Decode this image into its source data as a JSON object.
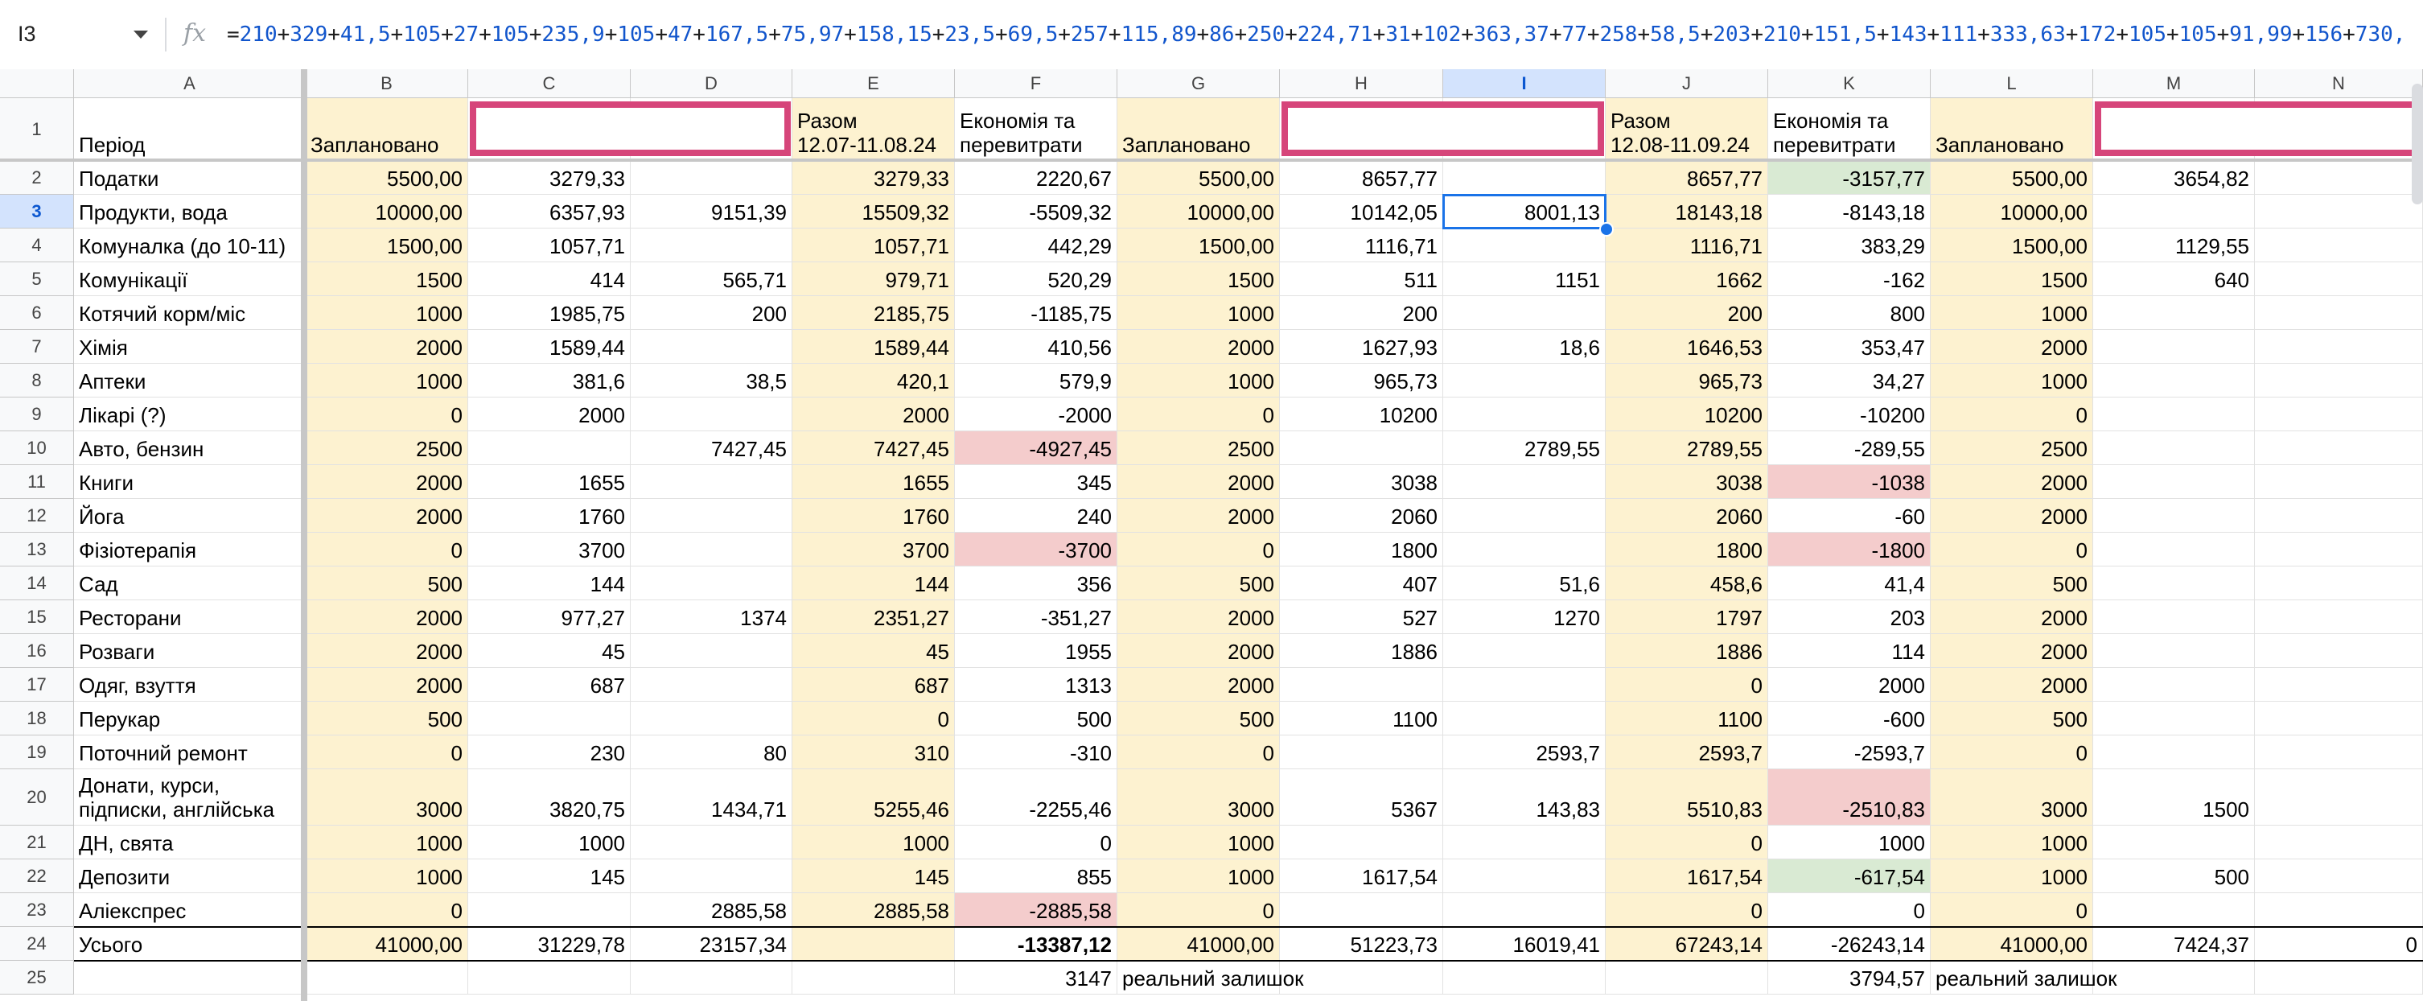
{
  "formula_bar": {
    "name_box": "I3",
    "formula": "=210+329+41,5+105+27+105+235,9+105+47+167,5+75,97+158,15+23,5+69,5+257+115,89+86+250+224,71+31+102+363,37+77+258+58,5+203+210+151,5+143+111+333,63+172+105+105+91,99+156+730,"
  },
  "columns": [
    "A",
    "B",
    "C",
    "D",
    "E",
    "F",
    "G",
    "H",
    "I",
    "J",
    "K",
    "L",
    "M",
    "N"
  ],
  "selected": {
    "row": 3,
    "col": "I"
  },
  "colors": {
    "planned_bg": "#fdf2d0",
    "red_bg": "#f4cccc",
    "green_bg": "#d9ead3",
    "selection": "#1a73e8",
    "blank_header_border": "#d6457a",
    "formula_number": "#1155cc"
  },
  "header_row": {
    "A": "Період",
    "B": "Заплановано",
    "C": "",
    "E": "Разом\n12.07-11.08.24",
    "F": "Економія та\nперевитрати",
    "G": "Заплановано",
    "H": "",
    "J": "Разом\n12.08-11.09.24",
    "K": "Економія та\nперевитрати",
    "L": "Заплановано",
    "M": ""
  },
  "rows": [
    {
      "n": 2,
      "A": "Податки",
      "B": "5500,00",
      "C": "3279,33",
      "D": "",
      "E": "3279,33",
      "F": "2220,67",
      "G": "5500,00",
      "H": "8657,77",
      "I": "",
      "J": "8657,77",
      "K": "-3157,77",
      "L": "5500,00",
      "M": "3654,82",
      "N": ""
    },
    {
      "n": 3,
      "A": "Продукти, вода",
      "B": "10000,00",
      "C": "6357,93",
      "D": "9151,39",
      "E": "15509,32",
      "F": "-5509,32",
      "G": "10000,00",
      "H": "10142,05",
      "I": "8001,13",
      "J": "18143,18",
      "K": "-8143,18",
      "L": "10000,00",
      "M": "",
      "N": ""
    },
    {
      "n": 4,
      "A": "Комуналка (до 10-11)",
      "B": "1500,00",
      "C": "1057,71",
      "D": "",
      "E": "1057,71",
      "F": "442,29",
      "G": "1500,00",
      "H": "1116,71",
      "I": "",
      "J": "1116,71",
      "K": "383,29",
      "L": "1500,00",
      "M": "1129,55",
      "N": ""
    },
    {
      "n": 5,
      "A": "Комунікації",
      "B": "1500",
      "C": "414",
      "D": "565,71",
      "E": "979,71",
      "F": "520,29",
      "G": "1500",
      "H": "511",
      "I": "1151",
      "J": "1662",
      "K": "-162",
      "L": "1500",
      "M": "640",
      "N": ""
    },
    {
      "n": 6,
      "A": "Котячий корм/міс",
      "B": "1000",
      "C": "1985,75",
      "D": "200",
      "E": "2185,75",
      "F": "-1185,75",
      "G": "1000",
      "H": "200",
      "I": "",
      "J": "200",
      "K": "800",
      "L": "1000",
      "M": "",
      "N": ""
    },
    {
      "n": 7,
      "A": "Хімія",
      "B": "2000",
      "C": "1589,44",
      "D": "",
      "E": "1589,44",
      "F": "410,56",
      "G": "2000",
      "H": "1627,93",
      "I": "18,6",
      "J": "1646,53",
      "K": "353,47",
      "L": "2000",
      "M": "",
      "N": ""
    },
    {
      "n": 8,
      "A": "Аптеки",
      "B": "1000",
      "C": "381,6",
      "D": "38,5",
      "E": "420,1",
      "F": "579,9",
      "G": "1000",
      "H": "965,73",
      "I": "",
      "J": "965,73",
      "K": "34,27",
      "L": "1000",
      "M": "",
      "N": ""
    },
    {
      "n": 9,
      "A": "Лікарі (?)",
      "B": "0",
      "C": "2000",
      "D": "",
      "E": "2000",
      "F": "-2000",
      "G": "0",
      "H": "10200",
      "I": "",
      "J": "10200",
      "K": "-10200",
      "L": "0",
      "M": "",
      "N": ""
    },
    {
      "n": 10,
      "A": "Авто, бензин",
      "B": "2500",
      "C": "",
      "D": "7427,45",
      "E": "7427,45",
      "F": "-4927,45",
      "G": "2500",
      "H": "",
      "I": "2789,55",
      "J": "2789,55",
      "K": "-289,55",
      "L": "2500",
      "M": "",
      "N": ""
    },
    {
      "n": 11,
      "A": "Книги",
      "B": "2000",
      "C": "1655",
      "D": "",
      "E": "1655",
      "F": "345",
      "G": "2000",
      "H": "3038",
      "I": "",
      "J": "3038",
      "K": "-1038",
      "L": "2000",
      "M": "",
      "N": ""
    },
    {
      "n": 12,
      "A": "Йога",
      "B": "2000",
      "C": "1760",
      "D": "",
      "E": "1760",
      "F": "240",
      "G": "2000",
      "H": "2060",
      "I": "",
      "J": "2060",
      "K": "-60",
      "L": "2000",
      "M": "",
      "N": ""
    },
    {
      "n": 13,
      "A": "Фізіотерапія",
      "B": "0",
      "C": "3700",
      "D": "",
      "E": "3700",
      "F": "-3700",
      "G": "0",
      "H": "1800",
      "I": "",
      "J": "1800",
      "K": "-1800",
      "L": "0",
      "M": "",
      "N": ""
    },
    {
      "n": 14,
      "A": "Сад",
      "B": "500",
      "C": "144",
      "D": "",
      "E": "144",
      "F": "356",
      "G": "500",
      "H": "407",
      "I": "51,6",
      "J": "458,6",
      "K": "41,4",
      "L": "500",
      "M": "",
      "N": ""
    },
    {
      "n": 15,
      "A": "Ресторани",
      "B": "2000",
      "C": "977,27",
      "D": "1374",
      "E": "2351,27",
      "F": "-351,27",
      "G": "2000",
      "H": "527",
      "I": "1270",
      "J": "1797",
      "K": "203",
      "L": "2000",
      "M": "",
      "N": ""
    },
    {
      "n": 16,
      "A": "Розваги",
      "B": "2000",
      "C": "45",
      "D": "",
      "E": "45",
      "F": "1955",
      "G": "2000",
      "H": "1886",
      "I": "",
      "J": "1886",
      "K": "114",
      "L": "2000",
      "M": "",
      "N": ""
    },
    {
      "n": 17,
      "A": "Одяг, взуття",
      "B": "2000",
      "C": "687",
      "D": "",
      "E": "687",
      "F": "1313",
      "G": "2000",
      "H": "",
      "I": "",
      "J": "0",
      "K": "2000",
      "L": "2000",
      "M": "",
      "N": ""
    },
    {
      "n": 18,
      "A": "Перукар",
      "B": "500",
      "C": "",
      "D": "",
      "E": "0",
      "F": "500",
      "G": "500",
      "H": "1100",
      "I": "",
      "J": "1100",
      "K": "-600",
      "L": "500",
      "M": "",
      "N": ""
    },
    {
      "n": 19,
      "A": "Поточний ремонт",
      "B": "0",
      "C": "230",
      "D": "80",
      "E": "310",
      "F": "-310",
      "G": "0",
      "H": "",
      "I": "2593,7",
      "J": "2593,7",
      "K": "-2593,7",
      "L": "0",
      "M": "",
      "N": ""
    },
    {
      "n": 20,
      "A": "Донати, курси,\nпідписки, англійська",
      "B": "3000",
      "C": "3820,75",
      "D": "1434,71",
      "E": "5255,46",
      "F": "-2255,46",
      "G": "3000",
      "H": "5367",
      "I": "143,83",
      "J": "5510,83",
      "K": "-2510,83",
      "L": "3000",
      "M": "1500",
      "N": ""
    },
    {
      "n": 21,
      "A": "ДН, свята",
      "B": "1000",
      "C": "1000",
      "D": "",
      "E": "1000",
      "F": "0",
      "G": "1000",
      "H": "",
      "I": "",
      "J": "0",
      "K": "1000",
      "L": "1000",
      "M": "",
      "N": ""
    },
    {
      "n": 22,
      "A": "Депозити",
      "B": "1000",
      "C": "145",
      "D": "",
      "E": "145",
      "F": "855",
      "G": "1000",
      "H": "1617,54",
      "I": "",
      "J": "1617,54",
      "K": "-617,54",
      "L": "1000",
      "M": "500",
      "N": ""
    },
    {
      "n": 23,
      "A": "Аліекспрес",
      "B": "0",
      "C": "",
      "D": "2885,58",
      "E": "2885,58",
      "F": "-2885,58",
      "G": "0",
      "H": "",
      "I": "",
      "J": "0",
      "K": "0",
      "L": "0",
      "M": "",
      "N": ""
    },
    {
      "n": 24,
      "A": "Усього",
      "B": "41000,00",
      "C": "31229,78",
      "D": "23157,34",
      "E": "",
      "F": "-13387,12",
      "G": "41000,00",
      "H": "51223,73",
      "I": "16019,41",
      "J": "67243,14",
      "K": "-26243,14",
      "L": "41000,00",
      "M": "7424,37",
      "N": "0"
    },
    {
      "n": 25,
      "A": "",
      "B": "",
      "C": "",
      "D": "",
      "E": "",
      "F": "3147",
      "G": "реальний залишок",
      "H": "",
      "I": "",
      "J": "",
      "K": "3794,57",
      "L": "реальний залишок",
      "M": "",
      "N": ""
    }
  ],
  "highlights": {
    "red": [
      "F10",
      "F13",
      "F23",
      "K11",
      "K13",
      "K20"
    ],
    "green": [
      "K2",
      "K22"
    ],
    "bold": [
      "F24"
    ]
  }
}
